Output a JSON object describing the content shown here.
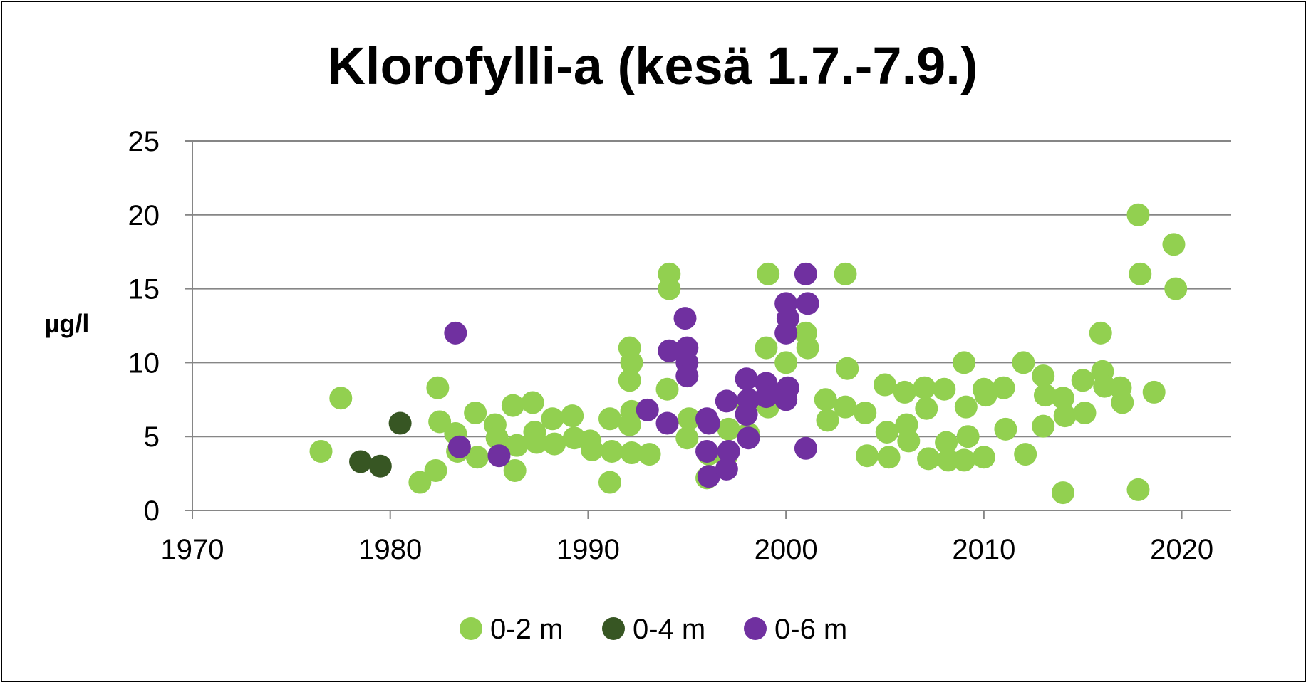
{
  "chart_data": {
    "type": "scatter",
    "title": "Klorofylli-a (kesä 1.7.-7.9.)",
    "xlabel": "",
    "ylabel": "µg/l",
    "xlim": [
      1970,
      2022.5
    ],
    "ylim": [
      0,
      25
    ],
    "xticks": [
      "1970",
      "1980",
      "1990",
      "2000",
      "2010",
      "2020"
    ],
    "yticks": [
      "0",
      "5",
      "10",
      "15",
      "20",
      "25"
    ],
    "grid": "horizontal",
    "legend_position": "bottom",
    "series": [
      {
        "name": "0-2 m",
        "color": "#92d050",
        "points": [
          [
            1976.5,
            4.0
          ],
          [
            1977.5,
            7.6
          ],
          [
            1981.5,
            1.9
          ],
          [
            1982.3,
            2.7
          ],
          [
            1982.4,
            8.3
          ],
          [
            1982.5,
            6.0
          ],
          [
            1983.3,
            5.2
          ],
          [
            1983.4,
            4.0
          ],
          [
            1984.3,
            6.6
          ],
          [
            1984.4,
            3.6
          ],
          [
            1985.3,
            5.8
          ],
          [
            1985.4,
            4.9
          ],
          [
            1986.2,
            7.1
          ],
          [
            1986.3,
            2.7
          ],
          [
            1986.4,
            4.4
          ],
          [
            1987.2,
            7.3
          ],
          [
            1987.3,
            5.3
          ],
          [
            1987.4,
            4.6
          ],
          [
            1988.2,
            6.2
          ],
          [
            1988.3,
            4.5
          ],
          [
            1989.2,
            6.4
          ],
          [
            1989.3,
            4.9
          ],
          [
            1990.1,
            4.7
          ],
          [
            1990.2,
            4.1
          ],
          [
            1991.1,
            6.2
          ],
          [
            1991.2,
            4.0
          ],
          [
            1991.1,
            1.9
          ],
          [
            1992.1,
            11.0
          ],
          [
            1992.2,
            10.0
          ],
          [
            1992.1,
            8.8
          ],
          [
            1992.2,
            6.7
          ],
          [
            1992.1,
            5.8
          ],
          [
            1992.2,
            3.9
          ],
          [
            1993.1,
            3.8
          ],
          [
            1994.1,
            16.0
          ],
          [
            1994.1,
            15.0
          ],
          [
            1994.0,
            8.2
          ],
          [
            1995.1,
            6.2
          ],
          [
            1995.0,
            4.9
          ],
          [
            1996.1,
            3.8
          ],
          [
            1996.0,
            2.2
          ],
          [
            1997.1,
            5.5
          ],
          [
            1997.0,
            3.7
          ],
          [
            1998.1,
            5.2
          ],
          [
            1998.0,
            7.2
          ],
          [
            1999.1,
            16.0
          ],
          [
            1999.0,
            11.0
          ],
          [
            1999.1,
            7.0
          ],
          [
            2000.0,
            10.0
          ],
          [
            2001.0,
            12.0
          ],
          [
            2001.1,
            11.0
          ],
          [
            2002.0,
            7.5
          ],
          [
            2002.1,
            6.1
          ],
          [
            2003.0,
            16.0
          ],
          [
            2003.1,
            9.6
          ],
          [
            2003.0,
            7.0
          ],
          [
            2004.0,
            6.6
          ],
          [
            2004.1,
            3.7
          ],
          [
            2005.0,
            8.5
          ],
          [
            2005.1,
            5.3
          ],
          [
            2005.2,
            3.6
          ],
          [
            2006.0,
            8.0
          ],
          [
            2006.1,
            5.8
          ],
          [
            2006.2,
            4.7
          ],
          [
            2007.0,
            8.3
          ],
          [
            2007.1,
            6.9
          ],
          [
            2007.2,
            3.5
          ],
          [
            2008.0,
            8.2
          ],
          [
            2008.1,
            4.6
          ],
          [
            2008.2,
            3.4
          ],
          [
            2009.0,
            10.0
          ],
          [
            2009.1,
            7.0
          ],
          [
            2009.2,
            5.0
          ],
          [
            2009.0,
            3.4
          ],
          [
            2010.0,
            8.2
          ],
          [
            2010.1,
            7.8
          ],
          [
            2010.0,
            3.6
          ],
          [
            2011.0,
            8.3
          ],
          [
            2011.1,
            5.5
          ],
          [
            2012.0,
            10.0
          ],
          [
            2012.1,
            3.8
          ],
          [
            2013.0,
            9.1
          ],
          [
            2013.1,
            7.8
          ],
          [
            2013.0,
            5.7
          ],
          [
            2014.0,
            7.6
          ],
          [
            2014.1,
            6.4
          ],
          [
            2014.0,
            1.2
          ],
          [
            2015.0,
            8.8
          ],
          [
            2015.1,
            6.6
          ],
          [
            2015.9,
            12.0
          ],
          [
            2016.0,
            9.4
          ],
          [
            2016.1,
            8.4
          ],
          [
            2016.9,
            8.3
          ],
          [
            2017.0,
            7.3
          ],
          [
            2017.8,
            20.0
          ],
          [
            2017.9,
            16.0
          ],
          [
            2017.8,
            1.4
          ],
          [
            2018.6,
            8.0
          ],
          [
            2019.6,
            18.0
          ],
          [
            2019.7,
            15.0
          ]
        ]
      },
      {
        "name": "0-4 m",
        "color": "#375623",
        "points": [
          [
            1978.5,
            3.3
          ],
          [
            1979.5,
            3.0
          ],
          [
            1980.5,
            5.9
          ]
        ]
      },
      {
        "name": "0-6 m",
        "color": "#7030a0",
        "points": [
          [
            1983.3,
            12.0
          ],
          [
            1983.5,
            4.3
          ],
          [
            1985.5,
            3.7
          ],
          [
            1993.0,
            6.8
          ],
          [
            1994.0,
            5.9
          ],
          [
            1994.1,
            10.8
          ],
          [
            1994.9,
            13.0
          ],
          [
            1995.0,
            11.0
          ],
          [
            1995.0,
            10.0
          ],
          [
            1995.0,
            9.1
          ],
          [
            1996.0,
            6.2
          ],
          [
            1996.1,
            5.9
          ],
          [
            1996.0,
            4.0
          ],
          [
            1996.1,
            2.3
          ],
          [
            1997.0,
            7.4
          ],
          [
            1997.1,
            4.0
          ],
          [
            1997.0,
            2.8
          ],
          [
            1998.0,
            8.9
          ],
          [
            1998.1,
            7.5
          ],
          [
            1998.0,
            6.5
          ],
          [
            1998.1,
            4.9
          ],
          [
            1999.0,
            8.6
          ],
          [
            1999.1,
            8.1
          ],
          [
            1999.0,
            7.7
          ],
          [
            2000.0,
            14.0
          ],
          [
            2000.1,
            13.0
          ],
          [
            2000.0,
            12.0
          ],
          [
            2000.1,
            8.3
          ],
          [
            2000.0,
            7.5
          ],
          [
            2001.0,
            16.0
          ],
          [
            2001.1,
            14.0
          ],
          [
            2001.0,
            4.2
          ]
        ]
      }
    ]
  }
}
